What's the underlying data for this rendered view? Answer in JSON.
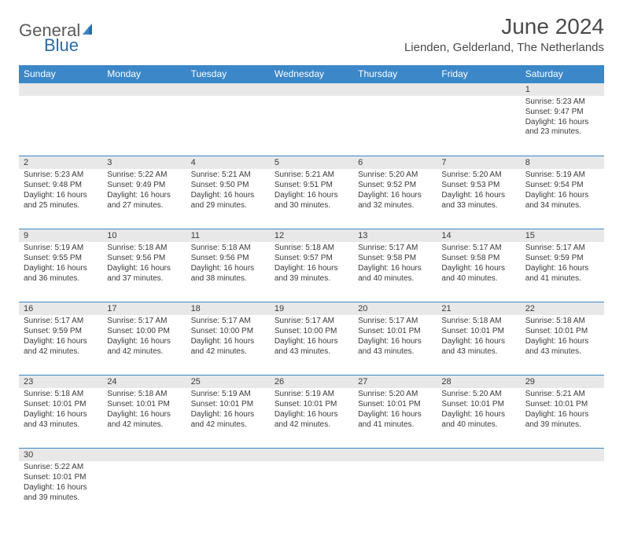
{
  "logo": {
    "text1": "General",
    "text2": "Blue"
  },
  "title": "June 2024",
  "location": "Lienden, Gelderland, The Netherlands",
  "colors": {
    "header_bg": "#3b87c8",
    "header_fg": "#ffffff",
    "daynum_bg": "#e8e8e8",
    "text": "#3a3a3a",
    "logo_gray": "#5a5a5a",
    "logo_blue": "#2b6ca8"
  },
  "daynames": [
    "Sunday",
    "Monday",
    "Tuesday",
    "Wednesday",
    "Thursday",
    "Friday",
    "Saturday"
  ],
  "weeks": [
    [
      null,
      null,
      null,
      null,
      null,
      null,
      {
        "n": "1",
        "sr": "Sunrise: 5:23 AM",
        "ss": "Sunset: 9:47 PM",
        "dl1": "Daylight: 16 hours",
        "dl2": "and 23 minutes."
      }
    ],
    [
      {
        "n": "2",
        "sr": "Sunrise: 5:23 AM",
        "ss": "Sunset: 9:48 PM",
        "dl1": "Daylight: 16 hours",
        "dl2": "and 25 minutes."
      },
      {
        "n": "3",
        "sr": "Sunrise: 5:22 AM",
        "ss": "Sunset: 9:49 PM",
        "dl1": "Daylight: 16 hours",
        "dl2": "and 27 minutes."
      },
      {
        "n": "4",
        "sr": "Sunrise: 5:21 AM",
        "ss": "Sunset: 9:50 PM",
        "dl1": "Daylight: 16 hours",
        "dl2": "and 29 minutes."
      },
      {
        "n": "5",
        "sr": "Sunrise: 5:21 AM",
        "ss": "Sunset: 9:51 PM",
        "dl1": "Daylight: 16 hours",
        "dl2": "and 30 minutes."
      },
      {
        "n": "6",
        "sr": "Sunrise: 5:20 AM",
        "ss": "Sunset: 9:52 PM",
        "dl1": "Daylight: 16 hours",
        "dl2": "and 32 minutes."
      },
      {
        "n": "7",
        "sr": "Sunrise: 5:20 AM",
        "ss": "Sunset: 9:53 PM",
        "dl1": "Daylight: 16 hours",
        "dl2": "and 33 minutes."
      },
      {
        "n": "8",
        "sr": "Sunrise: 5:19 AM",
        "ss": "Sunset: 9:54 PM",
        "dl1": "Daylight: 16 hours",
        "dl2": "and 34 minutes."
      }
    ],
    [
      {
        "n": "9",
        "sr": "Sunrise: 5:19 AM",
        "ss": "Sunset: 9:55 PM",
        "dl1": "Daylight: 16 hours",
        "dl2": "and 36 minutes."
      },
      {
        "n": "10",
        "sr": "Sunrise: 5:18 AM",
        "ss": "Sunset: 9:56 PM",
        "dl1": "Daylight: 16 hours",
        "dl2": "and 37 minutes."
      },
      {
        "n": "11",
        "sr": "Sunrise: 5:18 AM",
        "ss": "Sunset: 9:56 PM",
        "dl1": "Daylight: 16 hours",
        "dl2": "and 38 minutes."
      },
      {
        "n": "12",
        "sr": "Sunrise: 5:18 AM",
        "ss": "Sunset: 9:57 PM",
        "dl1": "Daylight: 16 hours",
        "dl2": "and 39 minutes."
      },
      {
        "n": "13",
        "sr": "Sunrise: 5:17 AM",
        "ss": "Sunset: 9:58 PM",
        "dl1": "Daylight: 16 hours",
        "dl2": "and 40 minutes."
      },
      {
        "n": "14",
        "sr": "Sunrise: 5:17 AM",
        "ss": "Sunset: 9:58 PM",
        "dl1": "Daylight: 16 hours",
        "dl2": "and 40 minutes."
      },
      {
        "n": "15",
        "sr": "Sunrise: 5:17 AM",
        "ss": "Sunset: 9:59 PM",
        "dl1": "Daylight: 16 hours",
        "dl2": "and 41 minutes."
      }
    ],
    [
      {
        "n": "16",
        "sr": "Sunrise: 5:17 AM",
        "ss": "Sunset: 9:59 PM",
        "dl1": "Daylight: 16 hours",
        "dl2": "and 42 minutes."
      },
      {
        "n": "17",
        "sr": "Sunrise: 5:17 AM",
        "ss": "Sunset: 10:00 PM",
        "dl1": "Daylight: 16 hours",
        "dl2": "and 42 minutes."
      },
      {
        "n": "18",
        "sr": "Sunrise: 5:17 AM",
        "ss": "Sunset: 10:00 PM",
        "dl1": "Daylight: 16 hours",
        "dl2": "and 42 minutes."
      },
      {
        "n": "19",
        "sr": "Sunrise: 5:17 AM",
        "ss": "Sunset: 10:00 PM",
        "dl1": "Daylight: 16 hours",
        "dl2": "and 43 minutes."
      },
      {
        "n": "20",
        "sr": "Sunrise: 5:17 AM",
        "ss": "Sunset: 10:01 PM",
        "dl1": "Daylight: 16 hours",
        "dl2": "and 43 minutes."
      },
      {
        "n": "21",
        "sr": "Sunrise: 5:18 AM",
        "ss": "Sunset: 10:01 PM",
        "dl1": "Daylight: 16 hours",
        "dl2": "and 43 minutes."
      },
      {
        "n": "22",
        "sr": "Sunrise: 5:18 AM",
        "ss": "Sunset: 10:01 PM",
        "dl1": "Daylight: 16 hours",
        "dl2": "and 43 minutes."
      }
    ],
    [
      {
        "n": "23",
        "sr": "Sunrise: 5:18 AM",
        "ss": "Sunset: 10:01 PM",
        "dl1": "Daylight: 16 hours",
        "dl2": "and 43 minutes."
      },
      {
        "n": "24",
        "sr": "Sunrise: 5:18 AM",
        "ss": "Sunset: 10:01 PM",
        "dl1": "Daylight: 16 hours",
        "dl2": "and 42 minutes."
      },
      {
        "n": "25",
        "sr": "Sunrise: 5:19 AM",
        "ss": "Sunset: 10:01 PM",
        "dl1": "Daylight: 16 hours",
        "dl2": "and 42 minutes."
      },
      {
        "n": "26",
        "sr": "Sunrise: 5:19 AM",
        "ss": "Sunset: 10:01 PM",
        "dl1": "Daylight: 16 hours",
        "dl2": "and 42 minutes."
      },
      {
        "n": "27",
        "sr": "Sunrise: 5:20 AM",
        "ss": "Sunset: 10:01 PM",
        "dl1": "Daylight: 16 hours",
        "dl2": "and 41 minutes."
      },
      {
        "n": "28",
        "sr": "Sunrise: 5:20 AM",
        "ss": "Sunset: 10:01 PM",
        "dl1": "Daylight: 16 hours",
        "dl2": "and 40 minutes."
      },
      {
        "n": "29",
        "sr": "Sunrise: 5:21 AM",
        "ss": "Sunset: 10:01 PM",
        "dl1": "Daylight: 16 hours",
        "dl2": "and 39 minutes."
      }
    ],
    [
      {
        "n": "30",
        "sr": "Sunrise: 5:22 AM",
        "ss": "Sunset: 10:01 PM",
        "dl1": "Daylight: 16 hours",
        "dl2": "and 39 minutes."
      },
      null,
      null,
      null,
      null,
      null,
      null
    ]
  ]
}
